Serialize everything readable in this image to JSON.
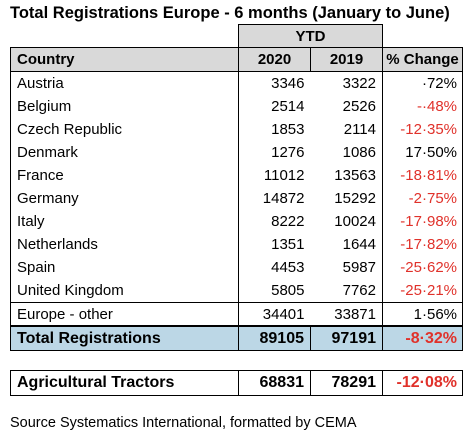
{
  "title": "Total Registrations Europe - 6 months (January to June)",
  "table": {
    "group_header": "YTD",
    "columns": [
      "Country",
      "2020",
      "2019",
      "% Change"
    ],
    "rows": [
      {
        "country": "Austria",
        "y2020": "3346",
        "y2019": "3322",
        "change": "·72%",
        "negative": false
      },
      {
        "country": "Belgium",
        "y2020": "2514",
        "y2019": "2526",
        "change": "-·48%",
        "negative": true
      },
      {
        "country": "Czech Republic",
        "y2020": "1853",
        "y2019": "2114",
        "change": "-12·35%",
        "negative": true
      },
      {
        "country": "Denmark",
        "y2020": "1276",
        "y2019": "1086",
        "change": "17·50%",
        "negative": false
      },
      {
        "country": "France",
        "y2020": "11012",
        "y2019": "13563",
        "change": "-18·81%",
        "negative": true
      },
      {
        "country": "Germany",
        "y2020": "14872",
        "y2019": "15292",
        "change": "-2·75%",
        "negative": true
      },
      {
        "country": "Italy",
        "y2020": "8222",
        "y2019": "10024",
        "change": "-17·98%",
        "negative": true
      },
      {
        "country": "Netherlands",
        "y2020": "1351",
        "y2019": "1644",
        "change": "-17·82%",
        "negative": true
      },
      {
        "country": "Spain",
        "y2020": "4453",
        "y2019": "5987",
        "change": "-25·62%",
        "negative": true
      },
      {
        "country": "United Kingdom",
        "y2020": "5805",
        "y2019": "7762",
        "change": "-25·21%",
        "negative": true
      }
    ],
    "other": {
      "country": "Europe - other",
      "y2020": "34401",
      "y2019": "33871",
      "change": "1·56%"
    },
    "total": {
      "country": "Total Registrations",
      "y2020": "89105",
      "y2019": "97191",
      "change": "-8·32%"
    }
  },
  "tractors": {
    "country": "Agricultural Tractors",
    "y2020": "68831",
    "y2019": "78291",
    "change": "-12·08%"
  },
  "source": "Source Systematics International, formatted by CEMA",
  "colors": {
    "header_grey": "#d9d9d9",
    "total_blue": "#bcd7e6",
    "negative_red": "#e0312a"
  }
}
